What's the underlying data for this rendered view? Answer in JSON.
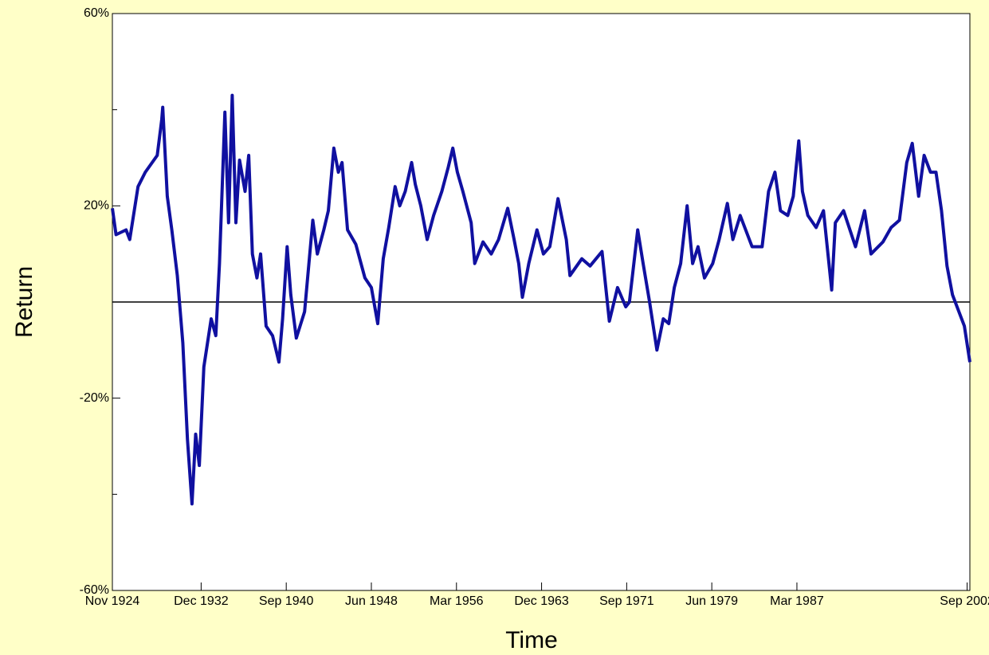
{
  "chart_data": {
    "type": "line",
    "xlabel": "Time",
    "ylabel": "Return",
    "xlim": [
      "Nov 1924",
      "Dec 2002"
    ],
    "xticks": [
      "Nov 1924",
      "Dec 1932",
      "Sep 1940",
      "Jun 1948",
      "Mar 1956",
      "Dec 1963",
      "Sep 1971",
      "Jun 1979",
      "Mar 1987",
      "Sep 2002"
    ],
    "ylim": [
      -60,
      60
    ],
    "yticks": [
      {
        "value": 60,
        "label": "60%"
      },
      {
        "value": 20,
        "label": "20%"
      },
      {
        "value": -20,
        "label": "-20%"
      },
      {
        "value": -60,
        "label": "-60%"
      }
    ],
    "yminorticks": [
      40,
      0,
      -40
    ],
    "reference_line": 0,
    "x": [
      "Nov 1924",
      "Mar 1925",
      "Feb 1926",
      "Jun 1926",
      "Mar 1927",
      "Nov 1927",
      "Dec 1928",
      "May 1929",
      "Jun 1929",
      "Nov 1929",
      "Apr 1930",
      "Oct 1930",
      "Apr 1931",
      "Sep 1931",
      "Feb 1932",
      "Jun 1932",
      "Oct 1932",
      "Mar 1933",
      "Nov 1933",
      "Apr 1934",
      "Aug 1934",
      "Feb 1935",
      "Jun 1935",
      "Oct 1935",
      "Feb 1936",
      "Jun 1936",
      "Dec 1936",
      "Apr 1937",
      "Aug 1937",
      "Jan 1938",
      "May 1938",
      "Nov 1938",
      "Jun 1939",
      "Jan 1940",
      "May 1940",
      "Oct 1940",
      "Feb 1941",
      "Aug 1941",
      "May 1942",
      "Feb 1943",
      "Jul 1943",
      "Feb 1944",
      "Jul 1944",
      "Jan 1945",
      "Jun 1945",
      "Oct 1945",
      "Apr 1946",
      "Jan 1947",
      "Nov 1947",
      "Jun 1948",
      "Jan 1949",
      "Jul 1949",
      "Jan 1950",
      "Aug 1950",
      "Jan 1951",
      "Jul 1951",
      "Feb 1952",
      "Jun 1952",
      "Dec 1952",
      "Jul 1953",
      "Feb 1954",
      "Nov 1954",
      "Jun 1955",
      "Nov 1955",
      "Apr 1956",
      "Oct 1956",
      "Jul 1957",
      "Nov 1957",
      "Aug 1958",
      "May 1959",
      "Jan 1960",
      "Nov 1960",
      "Jun 1961",
      "Nov 1961",
      "Mar 1962",
      "Oct 1962",
      "Jul 1963",
      "Feb 1964",
      "Sep 1964",
      "Jun 1965",
      "Mar 1966",
      "Jul 1966",
      "Aug 1967",
      "May 1968",
      "Jun 1969",
      "Feb 1970",
      "Nov 1970",
      "Aug 1971",
      "Dec 1971",
      "Sep 1972",
      "Mar 1973",
      "Oct 1973",
      "Jun 1974",
      "Jan 1975",
      "Jul 1975",
      "Jan 1976",
      "Aug 1976",
      "Mar 1977",
      "Sep 1977",
      "Mar 1978",
      "Oct 1978",
      "Jul 1979",
      "Feb 1980",
      "Nov 1980",
      "May 1981",
      "Jan 1982",
      "Feb 1983",
      "Jan 1984",
      "Aug 1984",
      "Mar 1985",
      "Sep 1985",
      "May 1986",
      "Nov 1986",
      "May 1987",
      "Sep 1987",
      "Mar 1988",
      "Dec 1988",
      "Aug 1989",
      "May 1990",
      "Sep 1990",
      "Jun 1991",
      "Jul 1992",
      "May 1993",
      "Dec 1993",
      "Jan 1995",
      "Oct 1995",
      "Jul 1996",
      "Mar 1997",
      "Sep 1997",
      "Apr 1998",
      "Oct 1998",
      "May 1999",
      "Nov 1999",
      "May 2000",
      "Nov 2000",
      "May 2001",
      "Jun 2002",
      "Dec 2002"
    ],
    "series": [
      {
        "name": "Return",
        "color": "#1010a0",
        "values": [
          19.5,
          14,
          15,
          13,
          24,
          27,
          30.5,
          38,
          40.5,
          22,
          15,
          5.5,
          -8.5,
          -28.5,
          -42,
          -27.5,
          -34,
          -13.5,
          -3.5,
          -7,
          8,
          39.5,
          16.5,
          43,
          16.5,
          29.5,
          23,
          30.5,
          10,
          5,
          10,
          -5,
          -7,
          -12.5,
          -3.5,
          11.5,
          1.5,
          -7.5,
          -2,
          17,
          10,
          15,
          19,
          32,
          27,
          29,
          15,
          12,
          5,
          3,
          -4.5,
          9,
          15.5,
          24,
          20,
          23,
          29,
          24.5,
          20,
          13,
          18,
          23,
          28,
          32,
          27,
          23,
          16.5,
          8,
          12.5,
          10,
          13,
          19.5,
          13,
          8,
          1,
          8,
          15,
          10,
          11.5,
          21.5,
          13,
          5.5,
          9,
          7.5,
          10.5,
          -4,
          3,
          -1,
          0,
          15,
          8,
          0,
          -10,
          -3.5,
          -4.5,
          3,
          8,
          20,
          8,
          11.5,
          5,
          8,
          13,
          20.5,
          13,
          18,
          11.5,
          11.5,
          23,
          27,
          19,
          18,
          22,
          33.5,
          23,
          18,
          15.5,
          19,
          2.5,
          16.5,
          19,
          11.5,
          19,
          10,
          12.5,
          15.5,
          17,
          29,
          33,
          22,
          30.5,
          27,
          27,
          19,
          7.5,
          1.5,
          -5,
          -12.5
        ]
      }
    ]
  }
}
